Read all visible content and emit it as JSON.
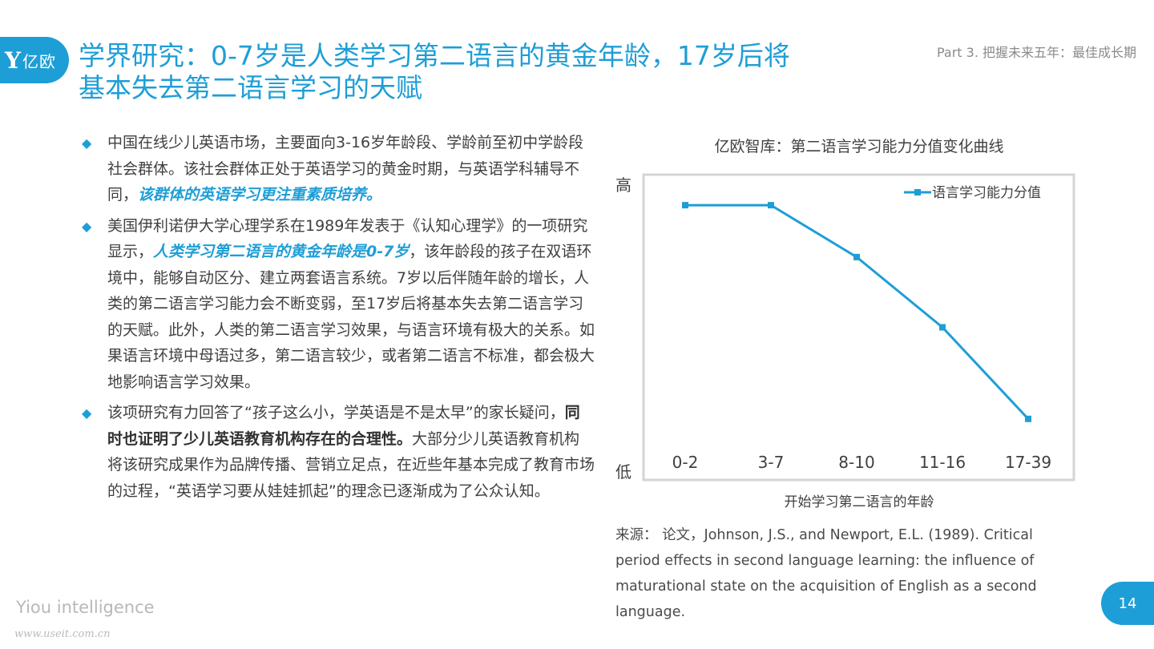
{
  "header": {
    "logo_mark": "Y",
    "logo_text": "亿欧",
    "title_line1": "学界研究：0-7岁是人类学习第二语言的黄金年龄，17岁后将",
    "title_line2": "基本失去第二语言学习的天赋",
    "part": "Part 3. 把握未来五年：最佳成长期"
  },
  "bullets": [
    {
      "icon": "diamond-icon",
      "text_before": "中国在线少儿英语市场，主要面向3-16岁年龄段、学龄前至初中学龄段社会群体。该社会群体正处于英语学习的黄金时期，与英语学科辅导不同，",
      "highlight": "该群体的英语学习更注重素质培养。",
      "text_after": ""
    },
    {
      "icon": "diamond-icon",
      "text_before": "美国伊利诺伊大学心理学系在1989年发表于《认知心理学》的一项研究显示，",
      "highlight": "人类学习第二语言的黄金年龄是0-7岁",
      "text_after": "，该年龄段的孩子在双语环境中，能够自动区分、建立两套语言系统。7岁以后伴随年龄的增长，人类的第二语言学习能力会不断变弱，至17岁后将基本失去第二语言学习的天赋。此外，人类的第二语言学习效果，与语言环境有极大的关系。如果语言环境中母语过多，第二语言较少，或者第二语言不标准，都会极大地影响语言学习效果。"
    },
    {
      "icon": "diamond-icon",
      "text_before": "该项研究有力回答了“孩子这么小，学英语是不是太早”的家长疑问，",
      "bold": "同时也证明了少儿英语教育机构存在的合理性。",
      "text_after": "大部分少儿英语教育机构将该研究成果作为品牌传播、营销立足点，在近些年基本完成了教育市场的过程，“英语学习要从娃娃抓起”的理念已逐渐成为了公众认知。"
    }
  ],
  "chart_data": {
    "type": "line",
    "title": "亿欧智库：第二语言学习能力分值变化曲线",
    "categories": [
      "0-2",
      "3-7",
      "8-10",
      "11-16",
      "17-39"
    ],
    "series": [
      {
        "name": "语言学习能力分值",
        "values": [
          90,
          90,
          73,
          50,
          20
        ],
        "color": "#1e9ed6"
      }
    ],
    "ylim": [
      0,
      100
    ],
    "y_high_label": "高",
    "y_low_label": "低",
    "xlabel": "开始学习第二语言的年龄",
    "ylabel": "",
    "grid": false,
    "legend_position": "top-right"
  },
  "source": {
    "text": "来源： 论文，Johnson, J.S., and Newport, E.L. (1989). Critical period effects in second language learning: the influence of maturational state on the acquisition of English as a second language."
  },
  "footer": {
    "brand": "Yiou intelligence",
    "url": "www.useit.com.cn",
    "page_number": "14"
  },
  "colors": {
    "accent": "#1e9ed6"
  }
}
